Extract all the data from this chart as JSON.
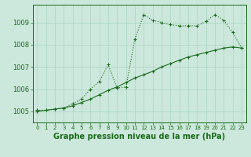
{
  "line1_x": [
    0,
    1,
    2,
    3,
    4,
    5,
    6,
    7,
    8,
    9,
    10,
    11,
    12,
    13,
    14,
    15,
    16,
    17,
    18,
    19,
    20,
    21,
    22,
    23
  ],
  "line1_y": [
    1005.05,
    1005.05,
    1005.1,
    1005.15,
    1005.35,
    1005.55,
    1006.0,
    1006.35,
    1007.1,
    1006.05,
    1006.1,
    1008.25,
    1009.35,
    1009.1,
    1009.0,
    1008.9,
    1008.85,
    1008.85,
    1008.85,
    1009.05,
    1009.35,
    1009.1,
    1008.55,
    1007.85
  ],
  "line2_x": [
    0,
    1,
    2,
    3,
    4,
    5,
    6,
    7,
    8,
    9,
    10,
    11,
    12,
    13,
    14,
    15,
    16,
    17,
    18,
    19,
    20,
    21,
    22,
    23
  ],
  "line2_y": [
    1005.0,
    1005.05,
    1005.1,
    1005.15,
    1005.25,
    1005.4,
    1005.55,
    1005.75,
    1005.95,
    1006.1,
    1006.3,
    1006.5,
    1006.65,
    1006.8,
    1007.0,
    1007.15,
    1007.3,
    1007.45,
    1007.55,
    1007.65,
    1007.75,
    1007.85,
    1007.9,
    1007.85
  ],
  "line_color": "#1a6b1a",
  "bg_color": "#cce8dc",
  "grid_color": "#aad4c4",
  "xlabel": "Graphe pression niveau de la mer (hPa)",
  "ylim": [
    1004.5,
    1009.8
  ],
  "xlim": [
    -0.5,
    23.5
  ],
  "yticks": [
    1005,
    1006,
    1007,
    1008,
    1009
  ],
  "xticks": [
    0,
    1,
    2,
    3,
    4,
    5,
    6,
    7,
    8,
    9,
    10,
    11,
    12,
    13,
    14,
    15,
    16,
    17,
    18,
    19,
    20,
    21,
    22,
    23
  ],
  "xlabel_fontsize": 7,
  "ytick_fontsize": 6,
  "xtick_fontsize": 5
}
